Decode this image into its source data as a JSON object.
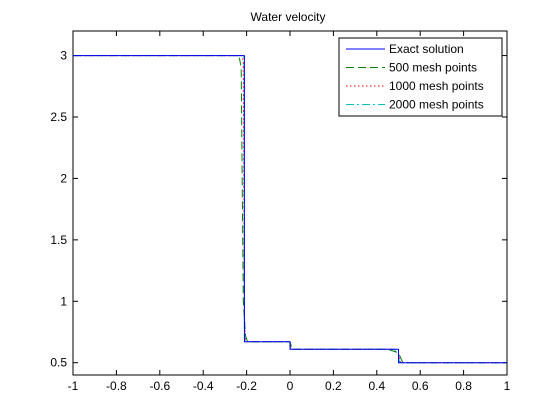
{
  "chart_data": {
    "type": "line",
    "title": "Water velocity",
    "xlabel": "",
    "ylabel": "",
    "xlim": [
      -1,
      1
    ],
    "ylim": [
      0.4,
      3.2
    ],
    "xticks": [
      -1,
      -0.8,
      -0.6,
      -0.4,
      -0.2,
      0,
      0.2,
      0.4,
      0.6,
      0.8,
      1
    ],
    "xtick_labels": [
      "-1",
      "-0.8",
      "-0.6",
      "-0.4",
      "-0.2",
      "0",
      "0.2",
      "0.4",
      "0.6",
      "0.8",
      "1"
    ],
    "yticks": [
      0.5,
      1,
      1.5,
      2,
      2.5,
      3
    ],
    "ytick_labels": [
      "0.5",
      "1",
      "1.5",
      "2",
      "2.5",
      "3"
    ],
    "grid": false,
    "legend_position": "top-right",
    "series": [
      {
        "name": "Exact solution",
        "color": "#0000ff",
        "style": "solid",
        "x": [
          -1,
          -0.21,
          -0.21,
          0.0,
          0.0,
          0.5,
          0.5,
          1
        ],
        "y": [
          3,
          3,
          0.67,
          0.67,
          0.61,
          0.61,
          0.5,
          0.5
        ]
      },
      {
        "name": "500 mesh points",
        "color": "#008000",
        "style": "dashed",
        "x": [
          -1,
          -0.235,
          -0.225,
          -0.215,
          -0.205,
          -0.195,
          0.0,
          0.01,
          0.45,
          0.5,
          0.52,
          1
        ],
        "y": [
          3,
          3,
          2.9,
          1.0,
          0.72,
          0.67,
          0.67,
          0.61,
          0.61,
          0.58,
          0.5,
          0.5
        ]
      },
      {
        "name": "1000 mesh points",
        "color": "#ff0000",
        "style": "dotted",
        "x": [
          -1,
          -0.22,
          -0.215,
          -0.21,
          -0.205,
          0.0,
          0.005,
          0.47,
          0.5,
          0.51,
          1
        ],
        "y": [
          3,
          3,
          2.95,
          0.9,
          0.67,
          0.67,
          0.61,
          0.61,
          0.57,
          0.5,
          0.5
        ]
      },
      {
        "name": "2000 mesh points",
        "color": "#00bfbf",
        "style": "dashdot",
        "x": [
          -1,
          -0.215,
          -0.212,
          -0.21,
          -0.207,
          0.0,
          0.003,
          0.48,
          0.5,
          0.505,
          1
        ],
        "y": [
          3,
          3,
          2.98,
          0.8,
          0.67,
          0.67,
          0.61,
          0.61,
          0.56,
          0.5,
          0.5
        ]
      }
    ]
  }
}
